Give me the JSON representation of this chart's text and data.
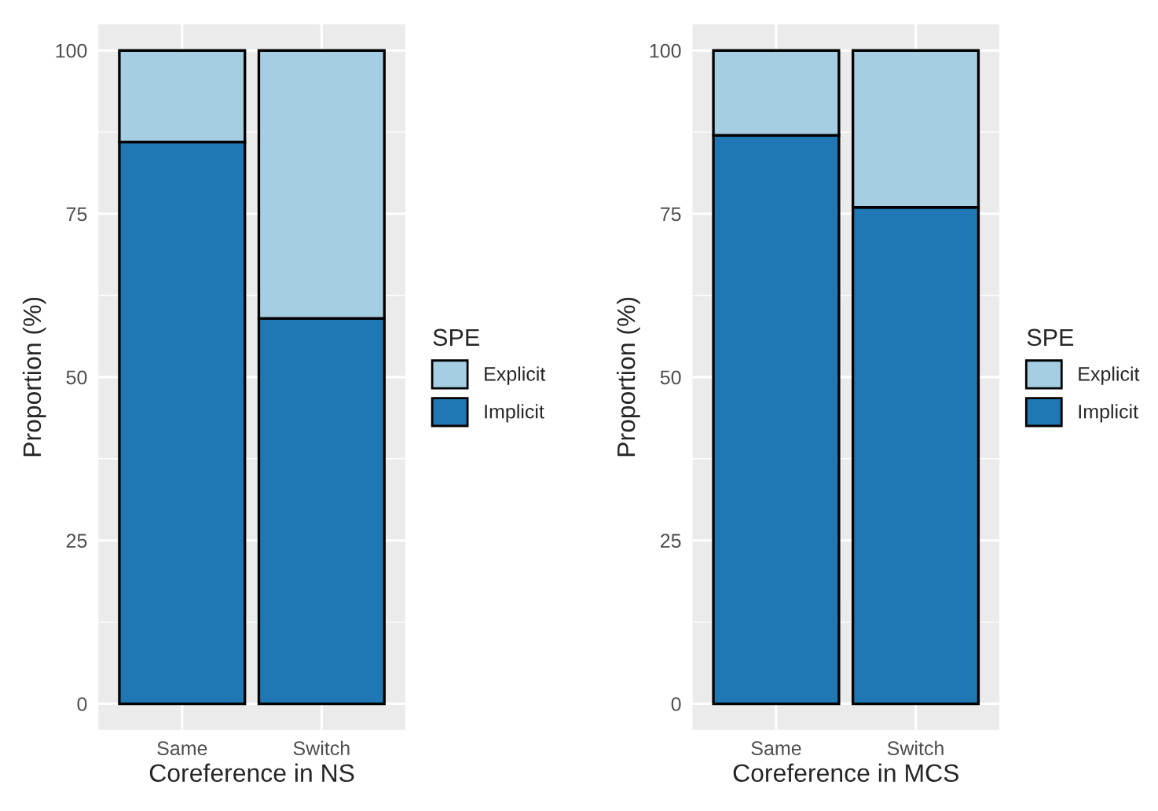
{
  "chart_data": [
    {
      "type": "bar",
      "stacked": true,
      "xlabel": "Coreference in NS",
      "ylabel": "Proportion (%)",
      "legend_title": "SPE",
      "legend": "right",
      "grid": true,
      "categories": [
        "Same",
        "Switch"
      ],
      "ylim": [
        -4,
        104
      ],
      "yticks": [
        0,
        25,
        50,
        75,
        100
      ],
      "series": [
        {
          "name": "Implicit",
          "color": "#1f78b4",
          "values": [
            86,
            59
          ]
        },
        {
          "name": "Explicit",
          "color": "#a6cee3",
          "values": [
            14,
            41
          ]
        }
      ]
    },
    {
      "type": "bar",
      "stacked": true,
      "xlabel": "Coreference in MCS",
      "ylabel": "Proportion (%)",
      "legend_title": "SPE",
      "legend": "right",
      "grid": true,
      "categories": [
        "Same",
        "Switch"
      ],
      "ylim": [
        -4,
        104
      ],
      "yticks": [
        0,
        25,
        50,
        75,
        100
      ],
      "series": [
        {
          "name": "Implicit",
          "color": "#1f78b4",
          "values": [
            87,
            76
          ]
        },
        {
          "name": "Explicit",
          "color": "#a6cee3",
          "values": [
            13,
            24
          ]
        }
      ]
    }
  ]
}
